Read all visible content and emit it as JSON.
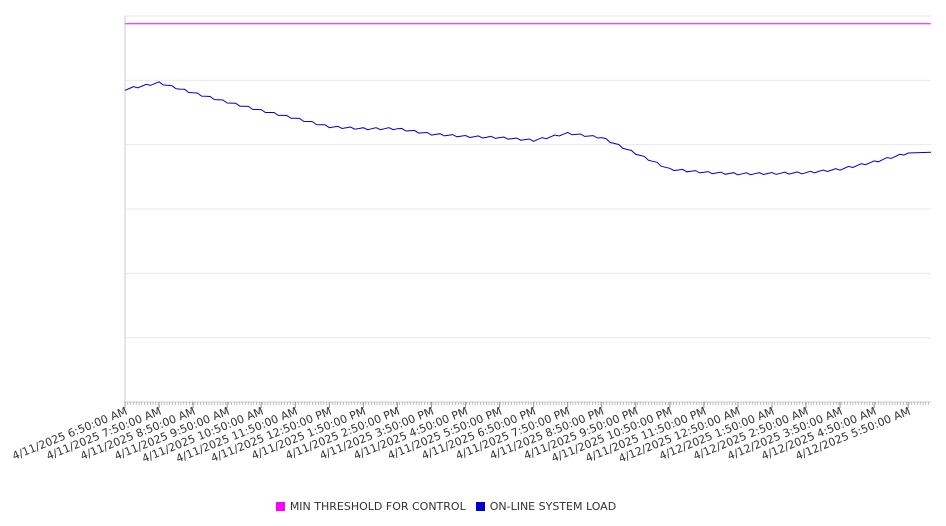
{
  "chart_data": {
    "type": "line",
    "title": "",
    "xlabel": "",
    "ylabel": "",
    "grid": true,
    "y_axis_labels": "not shown",
    "legend_position": "bottom-center",
    "x_tick_labels": [
      "4/11/2025 6:50:00 AM",
      "4/11/2025 7:50:00 AM",
      "4/11/2025 8:50:00 AM",
      "4/11/2025 9:50:00 AM",
      "4/11/2025 10:50:00 AM",
      "4/11/2025 11:50:00 AM",
      "4/11/2025 12:50:00 PM",
      "4/11/2025 1:50:00 PM",
      "4/11/2025 2:50:00 PM",
      "4/11/2025 3:50:00 PM",
      "4/11/2025 4:50:00 PM",
      "4/11/2025 5:50:00 PM",
      "4/11/2025 6:50:00 PM",
      "4/11/2025 7:50:00 PM",
      "4/11/2025 8:50:00 PM",
      "4/11/2025 9:50:00 PM",
      "4/11/2025 10:50:00 PM",
      "4/11/2025 11:50:00 PM",
      "4/12/2025 12:50:00 AM",
      "4/12/2025 1:50:00 AM",
      "4/12/2025 2:50:00 AM",
      "4/12/2025 3:50:00 AM",
      "4/12/2025 4:50:00 AM",
      "4/12/2025 5:50:00 AM"
    ],
    "series": [
      {
        "name": "MIN THRESHOLD FOR CONTROL",
        "color": "#ff00ff",
        "values": [
          0.98,
          0.98,
          0.98,
          0.98,
          0.98,
          0.98,
          0.98,
          0.98,
          0.98,
          0.98,
          0.98,
          0.98,
          0.98,
          0.98,
          0.98,
          0.98,
          0.98,
          0.98,
          0.98,
          0.98,
          0.98,
          0.98,
          0.98,
          0.98
        ]
      },
      {
        "name": "ON-LINE SYSTEM LOAD",
        "color": "#0000cc",
        "values": [
          0.81,
          0.827,
          0.801,
          0.777,
          0.755,
          0.735,
          0.713,
          0.708,
          0.708,
          0.694,
          0.688,
          0.685,
          0.678,
          0.696,
          0.685,
          0.644,
          0.603,
          0.595,
          0.591,
          0.592,
          0.594,
          0.603,
          0.622,
          0.645
        ]
      }
    ],
    "ylim": [
      0,
      1.0
    ]
  }
}
